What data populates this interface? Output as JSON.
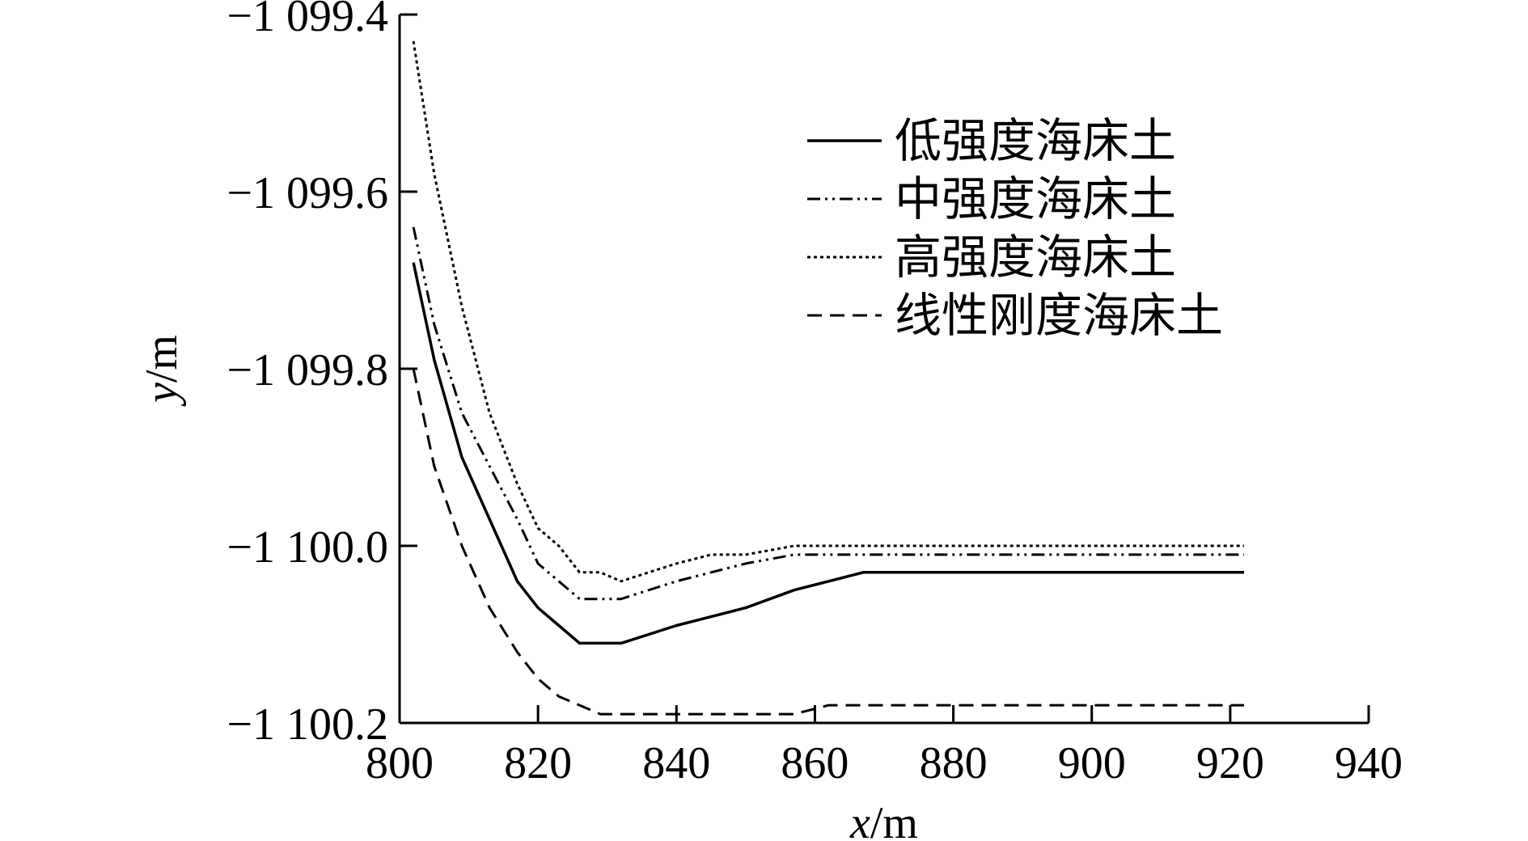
{
  "chart_data": {
    "type": "line",
    "title": "",
    "xlabel": {
      "var": "x",
      "unit": "/m"
    },
    "ylabel": {
      "var": "y",
      "unit": "/m"
    },
    "xlim": [
      800,
      940
    ],
    "ylim": [
      -1100.2,
      -1099.4
    ],
    "x_ticks": [
      800,
      820,
      840,
      860,
      880,
      900,
      920,
      940
    ],
    "x_tick_labels": [
      "800",
      "820",
      "840",
      "860",
      "880",
      "900",
      "920",
      "940"
    ],
    "y_ticks": [
      -1099.4,
      -1099.6,
      -1099.8,
      -1100.0,
      -1100.2
    ],
    "y_tick_labels": [
      "−1 099.4",
      "−1 099.6",
      "−1 099.8",
      "−1 100.0",
      "−1 100.2"
    ],
    "grid": false,
    "legend_position": "top-right",
    "series": [
      {
        "name": "低强度海床土",
        "style": "solid",
        "x": [
          802,
          805,
          809,
          813,
          817,
          820,
          823,
          826,
          829,
          832,
          836,
          840,
          845,
          850,
          857,
          862,
          867,
          875,
          880,
          890,
          900,
          910,
          922
        ],
        "y": [
          -1099.68,
          -1099.79,
          -1099.9,
          -1099.97,
          -1100.04,
          -1100.07,
          -1100.09,
          -1100.11,
          -1100.11,
          -1100.11,
          -1100.1,
          -1100.09,
          -1100.08,
          -1100.07,
          -1100.05,
          -1100.04,
          -1100.03,
          -1100.03,
          -1100.03,
          -1100.03,
          -1100.03,
          -1100.03,
          -1100.03
        ]
      },
      {
        "name": "中强度海床土",
        "style": "dash-dot-dot",
        "x": [
          802,
          805,
          809,
          813,
          817,
          820,
          823,
          826,
          829,
          832,
          836,
          840,
          845,
          850,
          857,
          862,
          867,
          875,
          880,
          890,
          900,
          910,
          922
        ],
        "y": [
          -1099.64,
          -1099.75,
          -1099.85,
          -1099.91,
          -1099.97,
          -1100.02,
          -1100.04,
          -1100.06,
          -1100.06,
          -1100.06,
          -1100.05,
          -1100.04,
          -1100.03,
          -1100.02,
          -1100.01,
          -1100.01,
          -1100.01,
          -1100.01,
          -1100.01,
          -1100.01,
          -1100.01,
          -1100.01,
          -1100.01
        ]
      },
      {
        "name": "高强度海床土",
        "style": "dotted",
        "x": [
          802,
          805,
          809,
          813,
          817,
          820,
          823,
          826,
          829,
          832,
          836,
          840,
          845,
          850,
          857,
          862,
          867,
          875,
          880,
          890,
          900,
          910,
          922
        ],
        "y": [
          -1099.43,
          -1099.58,
          -1099.73,
          -1099.85,
          -1099.93,
          -1099.98,
          -1100.0,
          -1100.03,
          -1100.03,
          -1100.04,
          -1100.03,
          -1100.02,
          -1100.01,
          -1100.01,
          -1100.0,
          -1100.0,
          -1100.0,
          -1100.0,
          -1100.0,
          -1100.0,
          -1100.0,
          -1100.0,
          -1100.0
        ]
      },
      {
        "name": "线性刚度海床土",
        "style": "dashed",
        "x": [
          802,
          805,
          809,
          813,
          817,
          820,
          823,
          826,
          829,
          832,
          836,
          840,
          845,
          850,
          857,
          862,
          867,
          875,
          880,
          890,
          900,
          910,
          922
        ],
        "y": [
          -1099.8,
          -1099.91,
          -1100.0,
          -1100.07,
          -1100.12,
          -1100.15,
          -1100.17,
          -1100.18,
          -1100.19,
          -1100.19,
          -1100.19,
          -1100.19,
          -1100.19,
          -1100.19,
          -1100.19,
          -1100.18,
          -1100.18,
          -1100.18,
          -1100.18,
          -1100.18,
          -1100.18,
          -1100.18,
          -1100.18
        ]
      }
    ]
  }
}
